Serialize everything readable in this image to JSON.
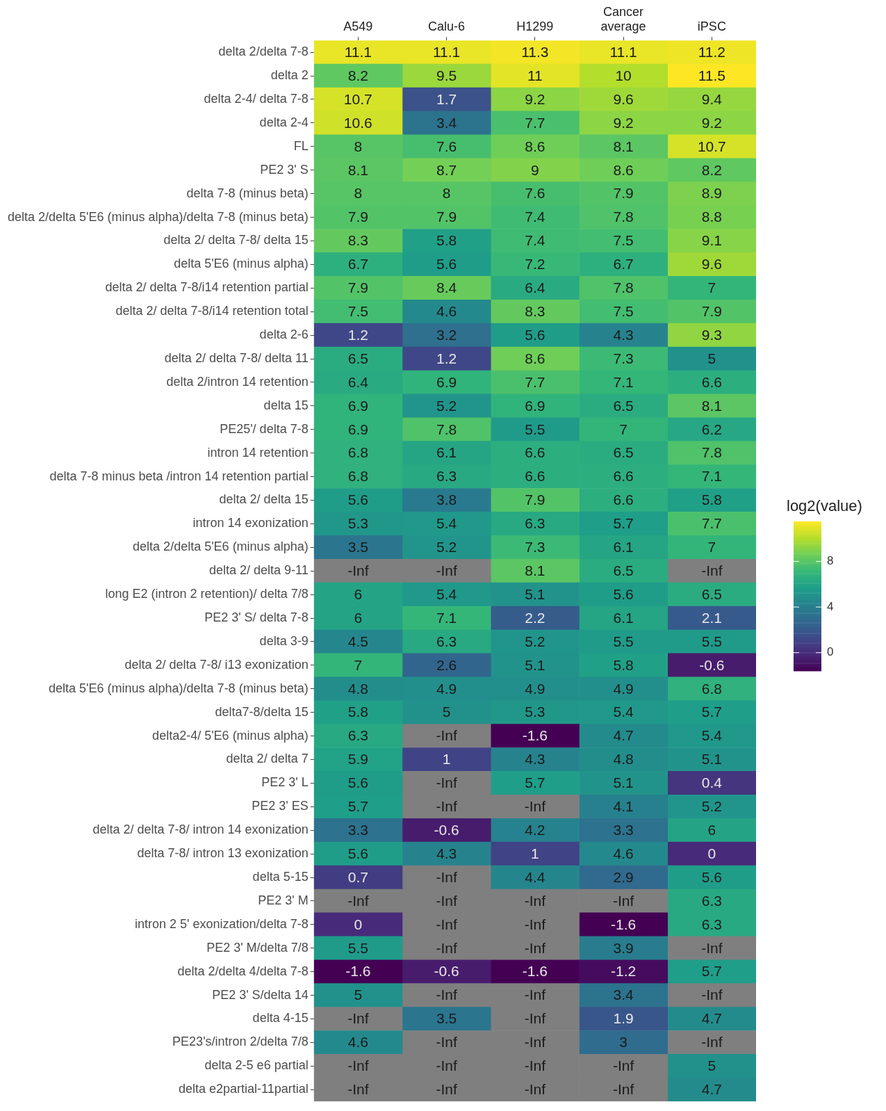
{
  "chart_data": {
    "type": "heatmap",
    "clabel": "log2(value)",
    "data_labels": true,
    "categories": [
      "A549",
      "Calu-6",
      "H1299",
      "Cancer average",
      "iPSC"
    ],
    "y_categories": [
      "delta 2/delta 7-8",
      "delta 2",
      "delta 2-4/ delta 7-8",
      "delta 2-4",
      "FL",
      "PE2 3' S",
      "delta 7-8 (minus beta)",
      "delta 2/delta 5'E6 (minus alpha)/delta 7-8 (minus beta)",
      "delta 2/ delta 7-8/ delta 15",
      "delta 5'E6 (minus alpha)",
      "delta 2/ delta 7-8/i14 retention partial",
      "delta 2/ delta 7-8/i14 retention total",
      "delta 2-6",
      "delta 2/ delta 7-8/ delta 11",
      "delta 2/intron 14 retention",
      "delta 15",
      "PE25'/ delta 7-8",
      "intron 14 retention",
      "delta 7-8 minus beta /intron 14 retention partial",
      "delta 2/ delta 15",
      "intron 14 exonization",
      "delta 2/delta 5'E6 (minus alpha)",
      "delta 2/ delta 9-11",
      "long E2 (intron 2 retention)/ delta 7/8",
      "PE2 3' S/ delta 7-8",
      "delta 3-9",
      "delta 2/ delta 7-8/ i13 exonization",
      "delta 5'E6 (minus alpha)/delta 7-8 (minus beta)",
      "delta7-8/delta 15",
      "delta2-4/ 5'E6 (minus alpha)",
      "delta 2/ delta 7",
      "PE2 3' L",
      "PE2 3' ES",
      "delta 2/ delta 7-8/ intron 14 exonization",
      "delta 7-8/ intron 13 exonization",
      "delta 5-15",
      "PE2 3' M",
      "intron 2 5' exonization/delta 7-8",
      "PE2 3' M/delta 7/8",
      "delta 2/delta 4/delta 7-8",
      "PE2 3' S/delta 14",
      "delta 4-15",
      "PE23's/intron 2/delta 7/8",
      "delta 2-5 e6 partial",
      "delta e2partial-11partial"
    ],
    "cells": [
      [
        11.1,
        11.1,
        11.3,
        11.1,
        11.2
      ],
      [
        8.2,
        9.5,
        11,
        10,
        11.5
      ],
      [
        10.7,
        1.7,
        9.2,
        9.6,
        9.4
      ],
      [
        10.6,
        3.4,
        7.7,
        9.2,
        9.2
      ],
      [
        8,
        7.6,
        8.6,
        8.1,
        10.7
      ],
      [
        8.1,
        8.7,
        9,
        8.6,
        8.2
      ],
      [
        8,
        8,
        7.6,
        7.9,
        8.9
      ],
      [
        7.9,
        7.9,
        7.4,
        7.8,
        8.8
      ],
      [
        8.3,
        5.8,
        7.4,
        7.5,
        9.1
      ],
      [
        6.7,
        5.6,
        7.2,
        6.7,
        9.6
      ],
      [
        7.9,
        8.4,
        6.4,
        7.8,
        7
      ],
      [
        7.5,
        4.6,
        8.3,
        7.5,
        7.9
      ],
      [
        1.2,
        3.2,
        5.6,
        4.3,
        9.3
      ],
      [
        6.5,
        1.2,
        8.6,
        7.3,
        5
      ],
      [
        6.4,
        6.9,
        7.7,
        7.1,
        6.6
      ],
      [
        6.9,
        5.2,
        6.9,
        6.5,
        8.1
      ],
      [
        6.9,
        7.8,
        5.5,
        7,
        6.2
      ],
      [
        6.8,
        6.1,
        6.6,
        6.5,
        7.8
      ],
      [
        6.8,
        6.3,
        6.6,
        6.6,
        7.1
      ],
      [
        5.6,
        3.8,
        7.9,
        6.6,
        5.8
      ],
      [
        5.3,
        5.4,
        6.3,
        5.7,
        7.7
      ],
      [
        3.5,
        5.2,
        7.3,
        6.1,
        7
      ],
      [
        null,
        null,
        8.1,
        6.5,
        null
      ],
      [
        6,
        5.4,
        5.1,
        5.6,
        6.5
      ],
      [
        6,
        7.1,
        2.2,
        6.1,
        2.1
      ],
      [
        4.5,
        6.3,
        5.2,
        5.5,
        5.5
      ],
      [
        7,
        2.6,
        5.1,
        5.8,
        -0.6
      ],
      [
        4.8,
        4.9,
        4.9,
        4.9,
        6.8
      ],
      [
        5.8,
        5,
        5.3,
        5.4,
        5.7
      ],
      [
        6.3,
        null,
        -1.6,
        4.7,
        5.4
      ],
      [
        5.9,
        1,
        4.3,
        4.8,
        5.1
      ],
      [
        5.6,
        null,
        5.7,
        5.1,
        0.4
      ],
      [
        5.7,
        null,
        null,
        4.1,
        5.2
      ],
      [
        3.3,
        -0.6,
        4.2,
        3.3,
        6
      ],
      [
        5.6,
        4.3,
        1,
        4.6,
        0
      ],
      [
        0.7,
        null,
        4.4,
        2.9,
        5.6
      ],
      [
        null,
        null,
        null,
        null,
        6.3
      ],
      [
        0,
        null,
        null,
        -1.6,
        6.3
      ],
      [
        5.5,
        null,
        null,
        3.9,
        null
      ],
      [
        -1.6,
        -0.6,
        -1.6,
        -1.2,
        5.7
      ],
      [
        5,
        null,
        null,
        3.4,
        null
      ],
      [
        null,
        3.5,
        null,
        1.9,
        4.7
      ],
      [
        4.6,
        null,
        null,
        3,
        null
      ],
      [
        null,
        null,
        null,
        null,
        5
      ],
      [
        null,
        null,
        null,
        null,
        4.7
      ]
    ],
    "cell_labels": [
      [
        "11.1",
        "11.1",
        "11.3",
        "11.1",
        "11.2"
      ],
      [
        "8.2",
        "9.5",
        "11",
        "10",
        "11.5"
      ],
      [
        "10.7",
        "1.7",
        "9.2",
        "9.6",
        "9.4"
      ],
      [
        "10.6",
        "3.4",
        "7.7",
        "9.2",
        "9.2"
      ],
      [
        "8",
        "7.6",
        "8.6",
        "8.1",
        "10.7"
      ],
      [
        "8.1",
        "8.7",
        "9",
        "8.6",
        "8.2"
      ],
      [
        "8",
        "8",
        "7.6",
        "7.9",
        "8.9"
      ],
      [
        "7.9",
        "7.9",
        "7.4",
        "7.8",
        "8.8"
      ],
      [
        "8.3",
        "5.8",
        "7.4",
        "7.5",
        "9.1"
      ],
      [
        "6.7",
        "5.6",
        "7.2",
        "6.7",
        "9.6"
      ],
      [
        "7.9",
        "8.4",
        "6.4",
        "7.8",
        "7"
      ],
      [
        "7.5",
        "4.6",
        "8.3",
        "7.5",
        "7.9"
      ],
      [
        "1.2",
        "3.2",
        "5.6",
        "4.3",
        "9.3"
      ],
      [
        "6.5",
        "1.2",
        "8.6",
        "7.3",
        "5"
      ],
      [
        "6.4",
        "6.9",
        "7.7",
        "7.1",
        "6.6"
      ],
      [
        "6.9",
        "5.2",
        "6.9",
        "6.5",
        "8.1"
      ],
      [
        "6.9",
        "7.8",
        "5.5",
        "7",
        "6.2"
      ],
      [
        "6.8",
        "6.1",
        "6.6",
        "6.5",
        "7.8"
      ],
      [
        "6.8",
        "6.3",
        "6.6",
        "6.6",
        "7.1"
      ],
      [
        "5.6",
        "3.8",
        "7.9",
        "6.6",
        "5.8"
      ],
      [
        "5.3",
        "5.4",
        "6.3",
        "5.7",
        "7.7"
      ],
      [
        "3.5",
        "5.2",
        "7.3",
        "6.1",
        "7"
      ],
      [
        "-Inf",
        "-Inf",
        "8.1",
        "6.5",
        "-Inf"
      ],
      [
        "6",
        "5.4",
        "5.1",
        "5.6",
        "6.5"
      ],
      [
        "6",
        "7.1",
        "2.2",
        "6.1",
        "2.1"
      ],
      [
        "4.5",
        "6.3",
        "5.2",
        "5.5",
        "5.5"
      ],
      [
        "7",
        "2.6",
        "5.1",
        "5.8",
        "-0.6"
      ],
      [
        "4.8",
        "4.9",
        "4.9",
        "4.9",
        "6.8"
      ],
      [
        "5.8",
        "5",
        "5.3",
        "5.4",
        "5.7"
      ],
      [
        "6.3",
        "-Inf",
        "-1.6",
        "4.7",
        "5.4"
      ],
      [
        "5.9",
        "1",
        "4.3",
        "4.8",
        "5.1"
      ],
      [
        "5.6",
        "-Inf",
        "5.7",
        "5.1",
        "0.4"
      ],
      [
        "5.7",
        "-Inf",
        "-Inf",
        "4.1",
        "5.2"
      ],
      [
        "3.3",
        "-0.6",
        "4.2",
        "3.3",
        "6"
      ],
      [
        "5.6",
        "4.3",
        "1",
        "4.6",
        "0"
      ],
      [
        "0.7",
        "-Inf",
        "4.4",
        "2.9",
        "5.6"
      ],
      [
        "-Inf",
        "-Inf",
        "-Inf",
        "-Inf",
        "6.3"
      ],
      [
        "0",
        "-Inf",
        "-Inf",
        "-1.6",
        "6.3"
      ],
      [
        "5.5",
        "-Inf",
        "-Inf",
        "3.9",
        "-Inf"
      ],
      [
        "-1.6",
        "-0.6",
        "-1.6",
        "-1.2",
        "5.7"
      ],
      [
        "5",
        "-Inf",
        "-Inf",
        "3.4",
        "-Inf"
      ],
      [
        "-Inf",
        "3.5",
        "-Inf",
        "1.9",
        "4.7"
      ],
      [
        "4.6",
        "-Inf",
        "-Inf",
        "3",
        "-Inf"
      ],
      [
        "-Inf",
        "-Inf",
        "-Inf",
        "-Inf",
        "5"
      ],
      [
        "-Inf",
        "-Inf",
        "-Inf",
        "-Inf",
        "4.7"
      ]
    ],
    "clim": [
      -1.6,
      11.5
    ],
    "cticks": [
      0,
      4,
      8
    ]
  }
}
